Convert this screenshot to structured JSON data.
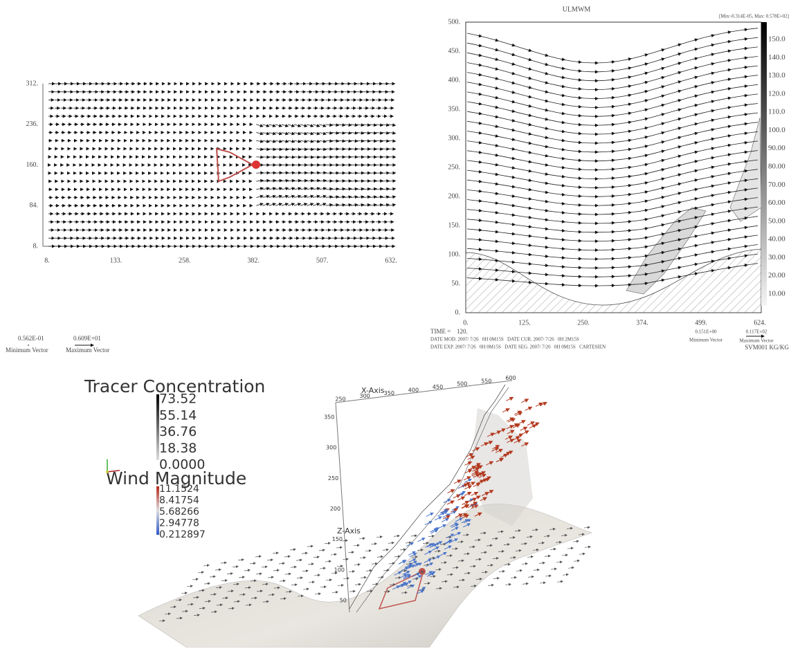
{
  "top_left": {
    "yticks": [
      "312.",
      "236.",
      "160.",
      "84.",
      "8."
    ],
    "xticks": [
      "8.",
      "133.",
      "258.",
      "382.",
      "507.",
      "632."
    ],
    "min_vector": {
      "value": "0.562E-01",
      "label": "Minimum Vector"
    },
    "max_vector": {
      "value": "0.609E+01",
      "label": "Maximum Vector"
    }
  },
  "top_right": {
    "title": "ULMWM",
    "range": "[Min:-0.314E-05, Max: 0.578E+02]",
    "yticks": [
      "500.",
      "450.",
      "400.",
      "350.",
      "300.",
      "250.",
      "200.",
      "150.",
      "100.",
      "50.",
      "0."
    ],
    "xticks": [
      "0.",
      "125.",
      "250.",
      "374.",
      "499.",
      "624."
    ],
    "colorbar": [
      "150.0",
      "140.0",
      "130.0",
      "120.0",
      "110.0",
      "100.0",
      "90.00",
      "80.00",
      "70.00",
      "60.00",
      "50.00",
      "40.00",
      "30.00",
      "20.00",
      "10.00"
    ],
    "time_label": "TIME =",
    "time": "120.",
    "info": [
      "DATE MOD. 2007/ 7/26   0H 0M15S   DATE CUR. 2007/ 7/26   0H 2M15S",
      "DATE EXP. 2007/ 7/26   0H 0M15S   DATE SEG. 2007/ 7/26   0H 0M15S   CARTESIEN"
    ],
    "min_vector": {
      "value": "0.151E+00",
      "label": "Minimum Vector"
    },
    "max_vector": {
      "value": "0.117E+02",
      "label": "Maximum Vector"
    },
    "units": "SVM001 KG/KG"
  },
  "bottom": {
    "tracer_title": "Tracer Concentration",
    "tracer_labels": [
      "73.52",
      "55.14",
      "36.76",
      "18.38",
      "0.0000"
    ],
    "wind_title": "Wind Magnitude",
    "wind_labels": [
      "11.1524",
      "8.41754",
      "5.68266",
      "2.94778",
      "0.212897"
    ],
    "x_axis": "X-Axis",
    "z_axis": "Z-Axis",
    "x_ticks": [
      "250",
      "300",
      "350",
      "400",
      "450",
      "500",
      "550",
      "600"
    ],
    "z_ticks": [
      "350",
      "300",
      "250",
      "200",
      "150",
      "100",
      "50"
    ]
  }
}
